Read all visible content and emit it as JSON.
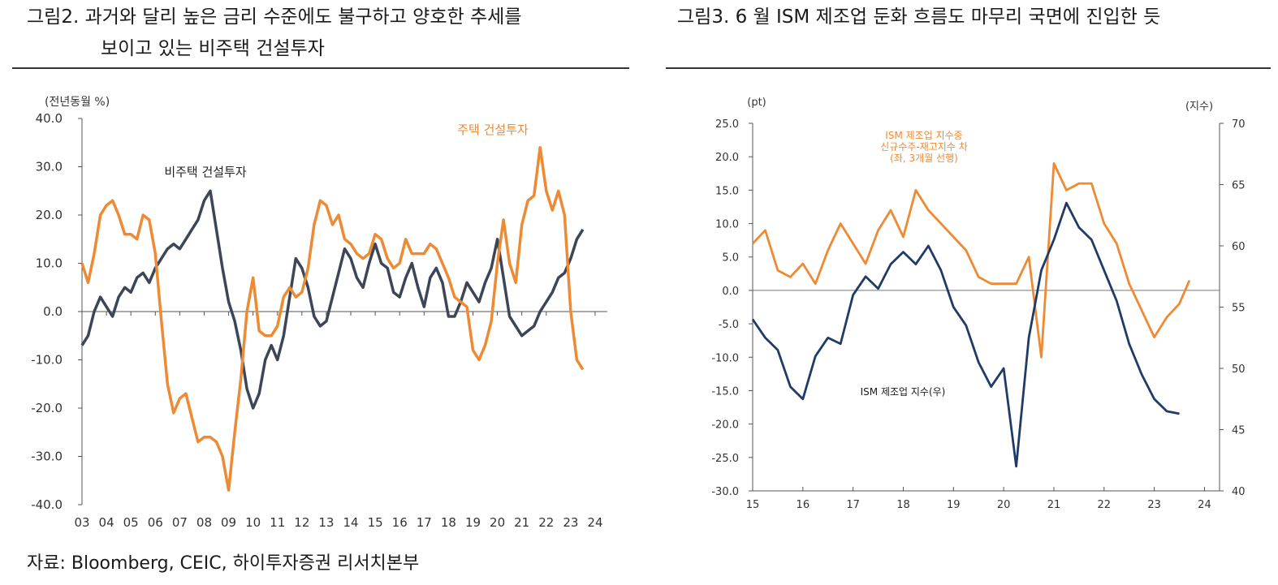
{
  "left": {
    "title_line1": "그림2.   과거와 달리 높은 금리 수준에도 불구하고 양호한 추세를",
    "title_line2": "보이고 있는 비주택 건설투자",
    "chart_data": {
      "type": "line",
      "unit_label": "(전년동월 %)",
      "x_ticks": [
        "03",
        "04",
        "05",
        "06",
        "07",
        "08",
        "09",
        "10",
        "11",
        "12",
        "13",
        "14",
        "15",
        "16",
        "17",
        "18",
        "19",
        "20",
        "21",
        "22",
        "23",
        "24"
      ],
      "y_ticks": [
        "40.0",
        "30.0",
        "20.0",
        "10.0",
        "0.0",
        "-10.0",
        "-20.0",
        "-30.0",
        "-40.0"
      ],
      "ylim": [
        -40,
        40
      ],
      "xlim": [
        2003,
        2024.5
      ],
      "series": [
        {
          "name": "비주택 건설투자",
          "color": "#3d4656",
          "x": [
            2003.0,
            2003.25,
            2003.5,
            2003.75,
            2004.0,
            2004.25,
            2004.5,
            2004.75,
            2005.0,
            2005.25,
            2005.5,
            2005.75,
            2006.0,
            2006.25,
            2006.5,
            2006.75,
            2007.0,
            2007.25,
            2007.5,
            2007.75,
            2008.0,
            2008.25,
            2008.5,
            2008.75,
            2009.0,
            2009.25,
            2009.5,
            2009.75,
            2010.0,
            2010.25,
            2010.5,
            2010.75,
            2011.0,
            2011.25,
            2011.5,
            2011.75,
            2012.0,
            2012.25,
            2012.5,
            2012.75,
            2013.0,
            2013.25,
            2013.5,
            2013.75,
            2014.0,
            2014.25,
            2014.5,
            2014.75,
            2015.0,
            2015.25,
            2015.5,
            2015.75,
            2016.0,
            2016.25,
            2016.5,
            2016.75,
            2017.0,
            2017.25,
            2017.5,
            2017.75,
            2018.0,
            2018.25,
            2018.5,
            2018.75,
            2019.0,
            2019.25,
            2019.5,
            2019.75,
            2020.0,
            2020.25,
            2020.5,
            2020.75,
            2021.0,
            2021.25,
            2021.5,
            2021.75,
            2022.0,
            2022.25,
            2022.5,
            2022.75,
            2023.0,
            2023.25,
            2023.5
          ],
          "y": [
            -7,
            -5,
            0,
            3,
            1,
            -1,
            3,
            5,
            4,
            7,
            8,
            6,
            9,
            11,
            13,
            14,
            13,
            15,
            17,
            19,
            23,
            25,
            17,
            9,
            2,
            -2,
            -8,
            -16,
            -20,
            -17,
            -10,
            -7,
            -10,
            -5,
            3,
            11,
            9,
            5,
            -1,
            -3,
            -2,
            3,
            8,
            13,
            11,
            7,
            5,
            10,
            14,
            10,
            9,
            4,
            3,
            7,
            10,
            5,
            1,
            7,
            9,
            6,
            -1,
            -1,
            2,
            6,
            4,
            2,
            6,
            9,
            15,
            7,
            -1,
            -3,
            -5,
            -4,
            -3,
            0,
            2,
            4,
            7,
            8,
            11,
            15,
            17
          ],
          "label": "비주택 건설투자"
        },
        {
          "name": "주택 건설투자",
          "color": "#ef8a34",
          "x": [
            2003.0,
            2003.25,
            2003.5,
            2003.75,
            2004.0,
            2004.25,
            2004.5,
            2004.75,
            2005.0,
            2005.25,
            2005.5,
            2005.75,
            2006.0,
            2006.25,
            2006.5,
            2006.75,
            2007.0,
            2007.25,
            2007.5,
            2007.75,
            2008.0,
            2008.25,
            2008.5,
            2008.75,
            2009.0,
            2009.25,
            2009.5,
            2009.75,
            2010.0,
            2010.25,
            2010.5,
            2010.75,
            2011.0,
            2011.25,
            2011.5,
            2011.75,
            2012.0,
            2012.25,
            2012.5,
            2012.75,
            2013.0,
            2013.25,
            2013.5,
            2013.75,
            2014.0,
            2014.25,
            2014.5,
            2014.75,
            2015.0,
            2015.25,
            2015.5,
            2015.75,
            2016.0,
            2016.25,
            2016.5,
            2016.75,
            2017.0,
            2017.25,
            2017.5,
            2017.75,
            2018.0,
            2018.25,
            2018.5,
            2018.75,
            2019.0,
            2019.25,
            2019.5,
            2019.75,
            2020.0,
            2020.25,
            2020.5,
            2020.75,
            2021.0,
            2021.25,
            2021.5,
            2021.75,
            2022.0,
            2022.25,
            2022.5,
            2022.75,
            2023.0,
            2023.25,
            2023.5
          ],
          "y": [
            10,
            6,
            12,
            20,
            22,
            23,
            20,
            16,
            16,
            15,
            20,
            19,
            12,
            -2,
            -15,
            -21,
            -18,
            -17,
            -22,
            -27,
            -26,
            -26,
            -27,
            -30,
            -37,
            -25,
            -14,
            0,
            7,
            -4,
            -5,
            -5,
            -3,
            3,
            5,
            3,
            4,
            9,
            18,
            23,
            22,
            18,
            20,
            15,
            14,
            12,
            11,
            12,
            16,
            15,
            11,
            9,
            10,
            15,
            12,
            12,
            12,
            14,
            13,
            10,
            7,
            3,
            2,
            1,
            -8,
            -10,
            -7,
            -2,
            10,
            19,
            10,
            6,
            18,
            23,
            24,
            34,
            25,
            21,
            25,
            20,
            0,
            -10,
            -12
          ],
          "label": "주택 건설투자"
        }
      ]
    }
  },
  "right": {
    "title": "그림3.   6 월 ISM 제조업 둔화 흐름도 마무리 국면에 진입한 듯",
    "chart_data": {
      "type": "line",
      "left_axis_label": "(pt)",
      "right_axis_label": "(지수)",
      "x_ticks": [
        "15",
        "16",
        "17",
        "18",
        "19",
        "20",
        "21",
        "22",
        "23",
        "24"
      ],
      "y_left_ticks": [
        "25.0",
        "20.0",
        "15.0",
        "10.0",
        "5.0",
        "0.0",
        "-5.0",
        "-10.0",
        "-15.0",
        "-20.0",
        "-25.0",
        "-30.0"
      ],
      "y_right_ticks": [
        "70",
        "65",
        "60",
        "55",
        "50",
        "45",
        "40"
      ],
      "ylim_left": [
        -30,
        25
      ],
      "ylim_right": [
        40,
        70
      ],
      "xlim": [
        2015,
        2024.3
      ],
      "series": [
        {
          "name": "ISM 제조업 지수중 신규수주-재고지수 차 (좌, 3개월 선행)",
          "axis": "left",
          "color": "#ef8a34",
          "label_lines": [
            "ISM 제조업 지수중",
            "신규수주-재고지수 차",
            "(좌, 3개월 선행)"
          ],
          "x": [
            2015.0,
            2015.25,
            2015.5,
            2015.75,
            2016.0,
            2016.25,
            2016.5,
            2016.75,
            2017.0,
            2017.25,
            2017.5,
            2017.75,
            2018.0,
            2018.25,
            2018.5,
            2018.75,
            2019.0,
            2019.25,
            2019.5,
            2019.75,
            2020.0,
            2020.25,
            2020.5,
            2020.75,
            2021.0,
            2021.25,
            2021.5,
            2021.75,
            2022.0,
            2022.25,
            2022.5,
            2022.75,
            2023.0,
            2023.25,
            2023.5,
            2023.7
          ],
          "y": [
            7,
            9,
            3,
            2,
            4,
            1,
            6,
            10,
            7,
            4,
            9,
            12,
            8,
            15,
            12,
            10,
            8,
            6,
            2,
            1,
            1,
            1,
            5,
            -10,
            19,
            15,
            16,
            16,
            10,
            7,
            1,
            -3,
            -7,
            -4,
            -2,
            1.5
          ]
        },
        {
          "name": "ISM 제조업 지수(우)",
          "axis": "right",
          "color": "#1f3b66",
          "label": "ISM 제조업 지수(우)",
          "x": [
            2015.0,
            2015.25,
            2015.5,
            2015.75,
            2016.0,
            2016.25,
            2016.5,
            2016.75,
            2017.0,
            2017.25,
            2017.5,
            2017.75,
            2018.0,
            2018.25,
            2018.5,
            2018.75,
            2019.0,
            2019.25,
            2019.5,
            2019.75,
            2020.0,
            2020.25,
            2020.5,
            2020.75,
            2021.0,
            2021.25,
            2021.5,
            2021.75,
            2022.0,
            2022.25,
            2022.5,
            2022.75,
            2023.0,
            2023.25,
            2023.5
          ],
          "y": [
            54,
            52.5,
            51.5,
            48.5,
            47.5,
            51,
            52.5,
            52,
            56,
            57.5,
            56.5,
            58.5,
            59.5,
            58.5,
            60,
            58,
            55,
            53.5,
            50.5,
            48.5,
            50,
            42,
            52.5,
            58,
            60.5,
            63.5,
            61.5,
            60.5,
            58,
            55.5,
            52,
            49.5,
            47.5,
            46.5,
            46.3
          ]
        }
      ]
    }
  },
  "source": "자료: Bloomberg, CEIC, 하이투자증권 리서치본부"
}
